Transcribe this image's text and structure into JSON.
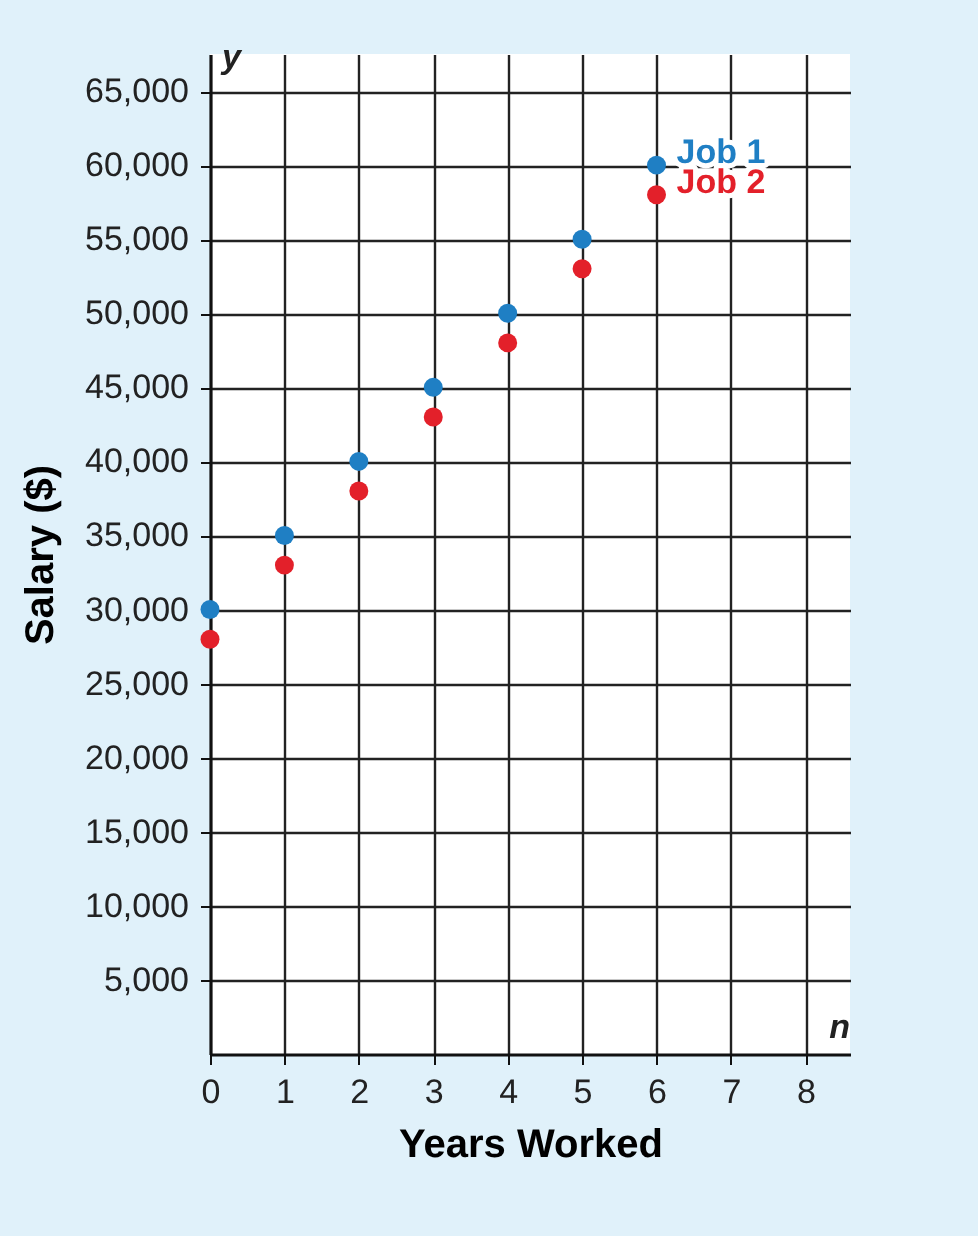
{
  "chart_data": {
    "type": "scatter",
    "xlabel": "Years Worked",
    "ylabel": "Salary ($)",
    "annotations": [
      "y",
      "n"
    ],
    "x": [
      0,
      1,
      2,
      3,
      4,
      5,
      6
    ],
    "series": [
      {
        "name": "Job 1",
        "color": "#1f7fc4",
        "values": [
          30000,
          35000,
          40000,
          45000,
          50000,
          55000,
          60000
        ]
      },
      {
        "name": "Job 2",
        "color": "#e3202a",
        "values": [
          28000,
          33000,
          38000,
          43000,
          48000,
          53000,
          58000
        ]
      }
    ],
    "xlim": [
      0,
      8.6
    ],
    "xticks": [
      0,
      1,
      2,
      3,
      4,
      5,
      6,
      7,
      8
    ],
    "ylim": [
      0,
      67500
    ],
    "yticks": [
      {
        "value": 5000,
        "label": "5,000"
      },
      {
        "value": 10000,
        "label": "10,000"
      },
      {
        "value": 15000,
        "label": "15,000"
      },
      {
        "value": 20000,
        "label": "20,000"
      },
      {
        "value": 25000,
        "label": "25,000"
      },
      {
        "value": 30000,
        "label": "30,000"
      },
      {
        "value": 35000,
        "label": "35,000"
      },
      {
        "value": 40000,
        "label": "40,000"
      },
      {
        "value": 45000,
        "label": "45,000"
      },
      {
        "value": 50000,
        "label": "50,000"
      },
      {
        "value": 55000,
        "label": "55,000"
      },
      {
        "value": 60000,
        "label": "60,000"
      },
      {
        "value": 65000,
        "label": "65,000"
      }
    ],
    "grid": true,
    "marker": "circle"
  }
}
